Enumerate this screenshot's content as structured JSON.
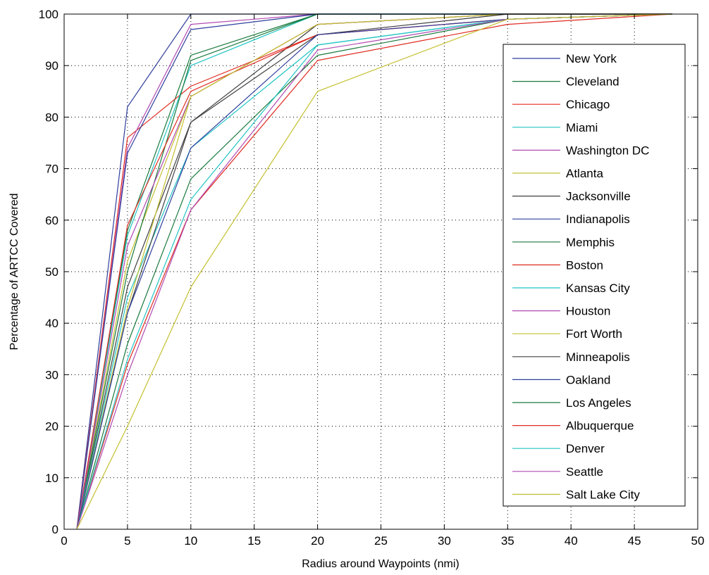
{
  "chart_data": {
    "type": "line",
    "title": "",
    "xlabel": "Radius around Waypoints (nmi)",
    "ylabel": "Percentage of ARTCC Covered",
    "xlim": [
      0,
      50
    ],
    "ylim": [
      0,
      100
    ],
    "xticks": [
      0,
      5,
      10,
      15,
      20,
      25,
      30,
      35,
      40,
      45,
      50
    ],
    "yticks": [
      0,
      10,
      20,
      30,
      40,
      50,
      60,
      70,
      80,
      90,
      100
    ],
    "grid": true,
    "legend_position": "right",
    "x": [
      1,
      5,
      10,
      20,
      35,
      48
    ],
    "series": [
      {
        "name": "New York",
        "color": "#2e3e9c",
        "values": [
          0,
          82,
          100,
          100,
          100,
          100
        ]
      },
      {
        "name": "Cleveland",
        "color": "#1a7a3e",
        "values": [
          0,
          58,
          92,
          100,
          100,
          100
        ]
      },
      {
        "name": "Chicago",
        "color": "#e02a20",
        "values": [
          0,
          76,
          86,
          96,
          99,
          100
        ]
      },
      {
        "name": "Miami",
        "color": "#22c4c4",
        "values": [
          0,
          57,
          90,
          100,
          100,
          100
        ]
      },
      {
        "name": "Washington DC",
        "color": "#b04ab0",
        "values": [
          0,
          74,
          98,
          100,
          100,
          100
        ]
      },
      {
        "name": "Atlanta",
        "color": "#c4c030",
        "values": [
          0,
          52,
          84,
          98,
          100,
          100
        ]
      },
      {
        "name": "Jacksonville",
        "color": "#404040",
        "values": [
          0,
          47,
          79,
          98,
          100,
          100
        ]
      },
      {
        "name": "Indianapolis",
        "color": "#2e3e9c",
        "values": [
          0,
          73,
          97,
          100,
          100,
          100
        ]
      },
      {
        "name": "Memphis",
        "color": "#1a7a3e",
        "values": [
          0,
          50,
          91,
          100,
          100,
          100
        ]
      },
      {
        "name": "Boston",
        "color": "#e02a20",
        "values": [
          0,
          59,
          85,
          96,
          99,
          100
        ]
      },
      {
        "name": "Kansas City",
        "color": "#22c4c4",
        "values": [
          0,
          45,
          74,
          94,
          99,
          100
        ]
      },
      {
        "name": "Houston",
        "color": "#b04ab0",
        "values": [
          0,
          55,
          84,
          98,
          100,
          100
        ]
      },
      {
        "name": "Fort Worth",
        "color": "#c4c030",
        "values": [
          0,
          43,
          84,
          98,
          100,
          100
        ]
      },
      {
        "name": "Minneapolis",
        "color": "#404040",
        "values": [
          0,
          42,
          79,
          96,
          100,
          100
        ]
      },
      {
        "name": "Oakland",
        "color": "#2e3e9c",
        "values": [
          0,
          42,
          74,
          96,
          99,
          100
        ]
      },
      {
        "name": "Los Angeles",
        "color": "#1a7a3e",
        "values": [
          0,
          36,
          68,
          92,
          99,
          100
        ]
      },
      {
        "name": "Albuquerque",
        "color": "#e02a20",
        "values": [
          0,
          32,
          62,
          91,
          98,
          100
        ]
      },
      {
        "name": "Denver",
        "color": "#22c4c4",
        "values": [
          0,
          33,
          64,
          94,
          99,
          100
        ]
      },
      {
        "name": "Seattle",
        "color": "#b04ab0",
        "values": [
          0,
          30,
          62,
          93,
          99,
          100
        ]
      },
      {
        "name": "Salt Lake City",
        "color": "#c4c030",
        "values": [
          0,
          20,
          47,
          85,
          99,
          100
        ]
      }
    ]
  }
}
